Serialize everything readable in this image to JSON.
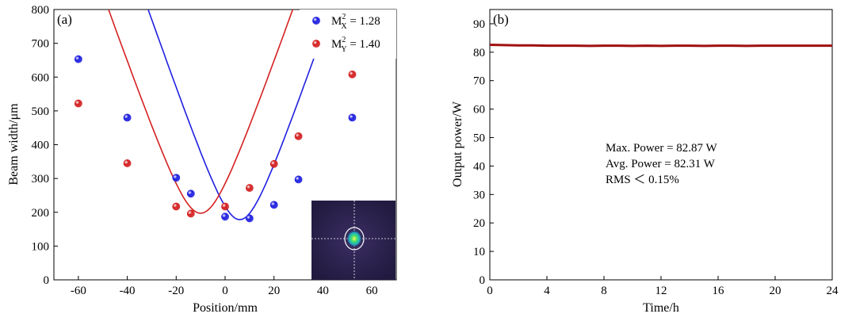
{
  "chart_data": [
    {
      "panel_label": "(a)",
      "type": "scatter",
      "xlabel": "Position/mm",
      "ylabel": "Beam width/μm",
      "xlim": [
        -70,
        70
      ],
      "ylim": [
        0,
        800
      ],
      "xticks": [
        -60,
        -40,
        -20,
        0,
        20,
        40,
        60
      ],
      "yticks": [
        0,
        100,
        200,
        300,
        400,
        500,
        600,
        700,
        800
      ],
      "legend_position": "top-right",
      "series": [
        {
          "name": "M²X = 1.28",
          "legend": {
            "main": "M",
            "sup": "2",
            "sub": "X",
            "value": " = 1.28"
          },
          "color": "#1f1fe0",
          "points": [
            [
              -60,
              653
            ],
            [
              -40,
              480
            ],
            [
              -20,
              302
            ],
            [
              -14,
              255
            ],
            [
              0,
              187
            ],
            [
              10,
              182
            ],
            [
              20,
              222
            ],
            [
              30,
              297
            ],
            [
              52,
              480
            ]
          ],
          "fit": {
            "waist_um": 178,
            "waist_pos_mm": 6,
            "curvature": 0.0117
          }
        },
        {
          "name": "M²Y = 1.40",
          "legend": {
            "main": "M",
            "sup": "2",
            "sub": "Y",
            "value": " = 1.40"
          },
          "color": "#d42020",
          "points": [
            [
              -60,
              522
            ],
            [
              -40,
              345
            ],
            [
              -20,
              217
            ],
            [
              -14,
              196
            ],
            [
              0,
              217
            ],
            [
              10,
              272
            ],
            [
              20,
              343
            ],
            [
              30,
              425
            ],
            [
              52,
              608
            ]
          ],
          "fit": {
            "waist_um": 197,
            "waist_pos_mm": -10,
            "curvature": 0.01045
          }
        }
      ],
      "inset": {
        "type": "beam-profile-image",
        "background": "#2a1f4a",
        "spot_color": "#3fe06a",
        "ring_color": "#ffffff"
      }
    },
    {
      "panel_label": "(b)",
      "type": "line",
      "xlabel": "Time/h",
      "ylabel": "Output power/W",
      "xlim": [
        0,
        24
      ],
      "ylim": [
        0,
        95
      ],
      "xticks": [
        0,
        4,
        8,
        12,
        16,
        20,
        24
      ],
      "yticks": [
        0,
        10,
        20,
        30,
        40,
        50,
        60,
        70,
        80,
        90
      ],
      "series": [
        {
          "color": "#a01010",
          "x": [
            0,
            1,
            2,
            3,
            4,
            5,
            6,
            7,
            8,
            9,
            10,
            11,
            12,
            13,
            14,
            15,
            16,
            17,
            18,
            19,
            20,
            21,
            22,
            23,
            24
          ],
          "values": [
            82.6,
            82.5,
            82.4,
            82.4,
            82.3,
            82.3,
            82.3,
            82.2,
            82.3,
            82.3,
            82.2,
            82.3,
            82.2,
            82.3,
            82.3,
            82.2,
            82.3,
            82.3,
            82.2,
            82.3,
            82.3,
            82.3,
            82.3,
            82.3,
            82.3
          ]
        }
      ],
      "annotations": [
        "Max. Power = 82.87 W",
        "Avg. Power = 82.31 W",
        "RMS ＜ 0.15%"
      ]
    }
  ]
}
